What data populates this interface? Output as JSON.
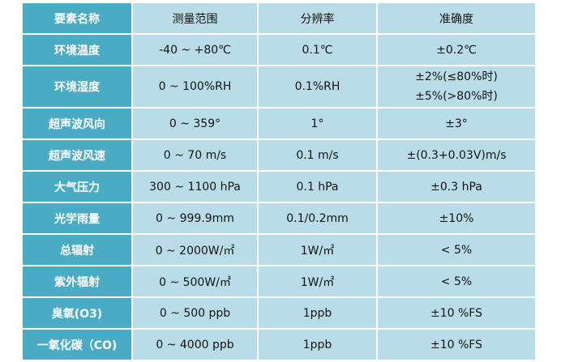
{
  "header": [
    "要素名称",
    "测量范围",
    "分辨率",
    "准确度"
  ],
  "rows": [
    {
      "name": "环境温度",
      "range": "-40 ~ +80℃",
      "resolution": "0.1℃",
      "accuracy": [
        "±0.2℃"
      ]
    },
    {
      "name": "环境湿度",
      "range": "0 ~ 100%RH",
      "resolution": "0.1%RH",
      "accuracy": [
        "±2%(≤80%时)",
        "±5%(>80%时)"
      ]
    },
    {
      "name": "超声波风向",
      "range": "0 ~ 359°",
      "resolution": "1°",
      "accuracy": [
        "±3°"
      ]
    },
    {
      "name": "超声波风速",
      "range": "0 ~ 70 m/s",
      "resolution": "0.1 m/s",
      "accuracy": [
        "±(0.3+0.03V)m/s"
      ]
    },
    {
      "name": "大气压力",
      "range": "300 ~ 1100 hPa",
      "resolution": "0.1 hPa",
      "accuracy": [
        "±0.3 hPa"
      ]
    },
    {
      "name": "光学雨量",
      "range": "0 ~ 999.9mm",
      "resolution": "0.1/0.2mm",
      "accuracy": [
        "±10%"
      ]
    },
    {
      "name": "总辐射",
      "range": "0 ~ 2000W/㎡",
      "resolution": "1W/㎡",
      "accuracy": [
        "< 5%"
      ]
    },
    {
      "name": "紫外辐射",
      "range": "0 ~ 500W/㎡",
      "resolution": "1W/㎡",
      "accuracy": [
        "< 5%"
      ]
    },
    {
      "name": "臭氧(O3)",
      "range": "0 ~ 500 ppb",
      "resolution": "1ppb",
      "accuracy": [
        "±10 %FS"
      ]
    },
    {
      "name": "一氧化碳（CO)",
      "range": "0 ~ 4000 ppb",
      "resolution": "1ppb",
      "accuracy": [
        "±10 %FS"
      ]
    }
  ],
  "colors": {
    "name_column": "#4aabc4",
    "cells": "#b8dde8",
    "border": "#ffffff"
  }
}
